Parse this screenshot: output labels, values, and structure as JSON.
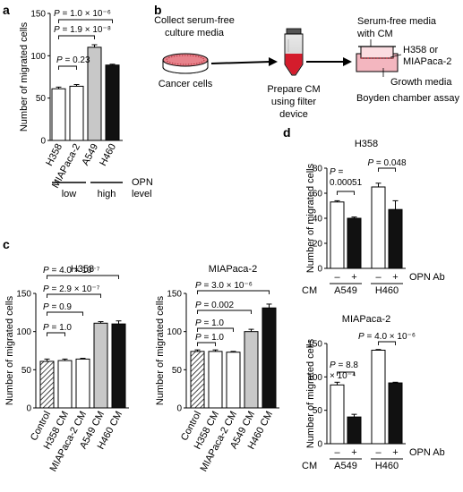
{
  "panels": {
    "a": "a",
    "b": "b",
    "c": "c",
    "d": "d"
  },
  "panel_b": {
    "collect": [
      "Collect serum-free",
      "culture media"
    ],
    "cancer_cells": "Cancer cells",
    "prepare": [
      "Prepare CM",
      "using filter",
      "device"
    ],
    "serum_free": [
      "Serum-free media",
      "with CM"
    ],
    "cells": [
      "H358 or",
      "MIAPaca-2"
    ],
    "growth": "Growth media",
    "assay": "Boyden chamber assay"
  },
  "panel_a_extra": {
    "low": "low",
    "high": "high",
    "opn_level": [
      "OPN",
      "level"
    ]
  },
  "panel_d_extra": {
    "cm_label": "CM",
    "opn_ab": "OPN Ab",
    "minus": "–",
    "plus": "+"
  },
  "chart_data": [
    {
      "id": "a",
      "type": "bar",
      "categories": [
        "H358",
        "MIAPaca-2",
        "A549",
        "H460"
      ],
      "values": [
        61,
        64,
        110,
        89
      ],
      "errors": [
        2,
        2,
        3,
        1
      ],
      "colors": [
        "#ffffff",
        "#ffffff",
        "#c8c8c8",
        "#111111"
      ],
      "ylabel": "Number of migrated cells",
      "ylim": [
        0,
        150
      ],
      "yticks": [
        "0",
        "50",
        "100",
        "150"
      ],
      "brackets": [
        {
          "from": 0,
          "to": 1,
          "label": "P = 0.23"
        },
        {
          "from": 0,
          "to": 2,
          "label": "P = 1.9 × 10⁻⁸"
        },
        {
          "from": 0,
          "to": 3,
          "label": "P = 1.0 × 10⁻⁶"
        }
      ]
    },
    {
      "id": "c1",
      "type": "bar",
      "title": "H358",
      "categories": [
        "Control",
        "H358 CM",
        "MIAPaca-2 CM",
        "A549 CM",
        "H460 CM"
      ],
      "values": [
        61,
        62,
        64,
        111,
        110
      ],
      "errors": [
        3,
        2,
        1,
        2,
        4
      ],
      "fills": [
        "hatch",
        "#ffffff",
        "#ffffff",
        "#c8c8c8",
        "#111111"
      ],
      "ylabel": "Number of migrated cells",
      "ylim": [
        0,
        150
      ],
      "yticks": [
        "0",
        "50",
        "100",
        "150"
      ],
      "brackets": [
        {
          "from": 0,
          "to": 1,
          "label": "P = 1.0"
        },
        {
          "from": 0,
          "to": 2,
          "label": "P = 0.9"
        },
        {
          "from": 0,
          "to": 3,
          "label": "P = 2.9 × 10⁻⁷"
        },
        {
          "from": 0,
          "to": 4,
          "label": "P = 4.0 × 10⁻⁷"
        }
      ]
    },
    {
      "id": "c2",
      "type": "bar",
      "title": "MIAPaca-2",
      "categories": [
        "Control",
        "H358 CM",
        "MIAPaca-2 CM",
        "A549 CM",
        "H460 CM"
      ],
      "values": [
        74,
        74,
        73,
        100,
        131
      ],
      "errors": [
        2,
        2,
        1,
        3,
        5
      ],
      "fills": [
        "hatch",
        "#ffffff",
        "#ffffff",
        "#c8c8c8",
        "#111111"
      ],
      "ylabel": "Number of migrated cells",
      "ylim": [
        0,
        150
      ],
      "yticks": [
        "0",
        "50",
        "100",
        "150"
      ],
      "brackets": [
        {
          "from": 0,
          "to": 1,
          "label": "P = 1.0"
        },
        {
          "from": 0,
          "to": 2,
          "label": "P = 1.0"
        },
        {
          "from": 0,
          "to": 3,
          "label": "P = 0.002"
        },
        {
          "from": 0,
          "to": 4,
          "label": "P = 3.0 × 10⁻⁶"
        }
      ]
    },
    {
      "id": "d1",
      "type": "bar",
      "title": "H358",
      "categories": [
        "A549 –",
        "A549 +",
        "H460 –",
        "H460 +"
      ],
      "groups": [
        "A549",
        "H460"
      ],
      "opn_ab": [
        "–",
        "+",
        "–",
        "+"
      ],
      "values": [
        53,
        40,
        65,
        47
      ],
      "errors": [
        1,
        1,
        3,
        7
      ],
      "colors": [
        "#ffffff",
        "#111111",
        "#ffffff",
        "#111111"
      ],
      "ylabel": "Number of migrated cells",
      "ylim": [
        0,
        80
      ],
      "yticks": [
        "0",
        "20",
        "40",
        "60",
        "80"
      ],
      "brackets": [
        {
          "from": 0,
          "to": 1,
          "label": [
            "P =",
            "0.00051"
          ]
        },
        {
          "from": 2,
          "to": 3,
          "label": [
            "P = 0.048"
          ]
        }
      ]
    },
    {
      "id": "d2",
      "type": "bar",
      "title": "MIAPaca-2",
      "categories": [
        "A549 –",
        "A549 +",
        "H460 –",
        "H460 +"
      ],
      "groups": [
        "A549",
        "H460"
      ],
      "opn_ab": [
        "–",
        "+",
        "–",
        "+"
      ],
      "values": [
        88,
        40,
        140,
        91
      ],
      "errors": [
        4,
        4,
        1,
        1
      ],
      "colors": [
        "#ffffff",
        "#111111",
        "#ffffff",
        "#111111"
      ],
      "ylabel": "Number of migrated cells",
      "ylim": [
        0,
        150
      ],
      "yticks": [
        "0",
        "50",
        "100",
        "150"
      ],
      "brackets": [
        {
          "from": 0,
          "to": 1,
          "label": [
            "P = 8.8",
            "× 10⁻⁴"
          ]
        },
        {
          "from": 2,
          "to": 3,
          "label": [
            "P = 4.0 × 10⁻⁶"
          ]
        }
      ]
    }
  ]
}
